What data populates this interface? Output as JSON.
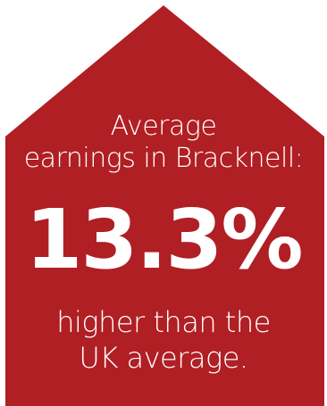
{
  "colors": {
    "shape": "#b01f24",
    "text": "#ffffff",
    "background": "#ffffff"
  },
  "infographic": {
    "intro_line1": "Average",
    "intro_line2": "earnings in Bracknell:",
    "stat": "13.3%",
    "outro_line1": "higher than the",
    "outro_line2": "UK average."
  }
}
